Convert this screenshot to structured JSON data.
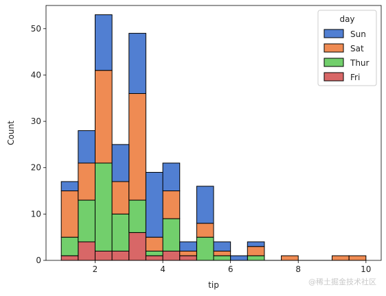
{
  "chart_data": {
    "type": "bar",
    "stacked": true,
    "xlabel": "tip",
    "ylabel": "Count",
    "xlim": [
      0.55,
      10.45
    ],
    "ylim": [
      0,
      55
    ],
    "x_ticks": [
      2,
      4,
      6,
      8,
      10
    ],
    "y_ticks": [
      0,
      10,
      20,
      30,
      40,
      50
    ],
    "grid": false,
    "bin_edges": [
      1.0,
      1.5,
      2.0,
      2.5,
      3.0,
      3.5,
      4.0,
      4.5,
      5.0,
      5.5,
      6.0,
      6.5,
      7.0,
      7.5,
      8.0,
      8.5,
      9.0,
      9.5,
      10.0
    ],
    "legend": {
      "title": "day",
      "placement": "top-right",
      "entries": [
        "Sun",
        "Sat",
        "Thur",
        "Fri"
      ]
    },
    "series": [
      {
        "name": "Fri",
        "color": "#d65f5f",
        "values": [
          1,
          4,
          2,
          2,
          6,
          1,
          2,
          1,
          0,
          0,
          0,
          0,
          0,
          0,
          0,
          0,
          0,
          0
        ]
      },
      {
        "name": "Thur",
        "color": "#6acc64",
        "values": [
          4,
          9,
          19,
          8,
          7,
          1,
          7,
          0,
          5,
          1,
          0,
          1,
          0,
          0,
          0,
          0,
          0,
          0
        ]
      },
      {
        "name": "Sat",
        "color": "#ee854a",
        "values": [
          10,
          8,
          20,
          7,
          23,
          3,
          6,
          1,
          3,
          1,
          0,
          2,
          0,
          1,
          0,
          0,
          1,
          1
        ]
      },
      {
        "name": "Sun",
        "color": "#4878d0",
        "values": [
          2,
          7,
          12,
          8,
          13,
          14,
          6,
          2,
          8,
          2,
          1,
          1,
          0,
          0,
          0,
          0,
          0,
          0
        ]
      }
    ]
  },
  "watermark": "@稀土掘金技术社区"
}
